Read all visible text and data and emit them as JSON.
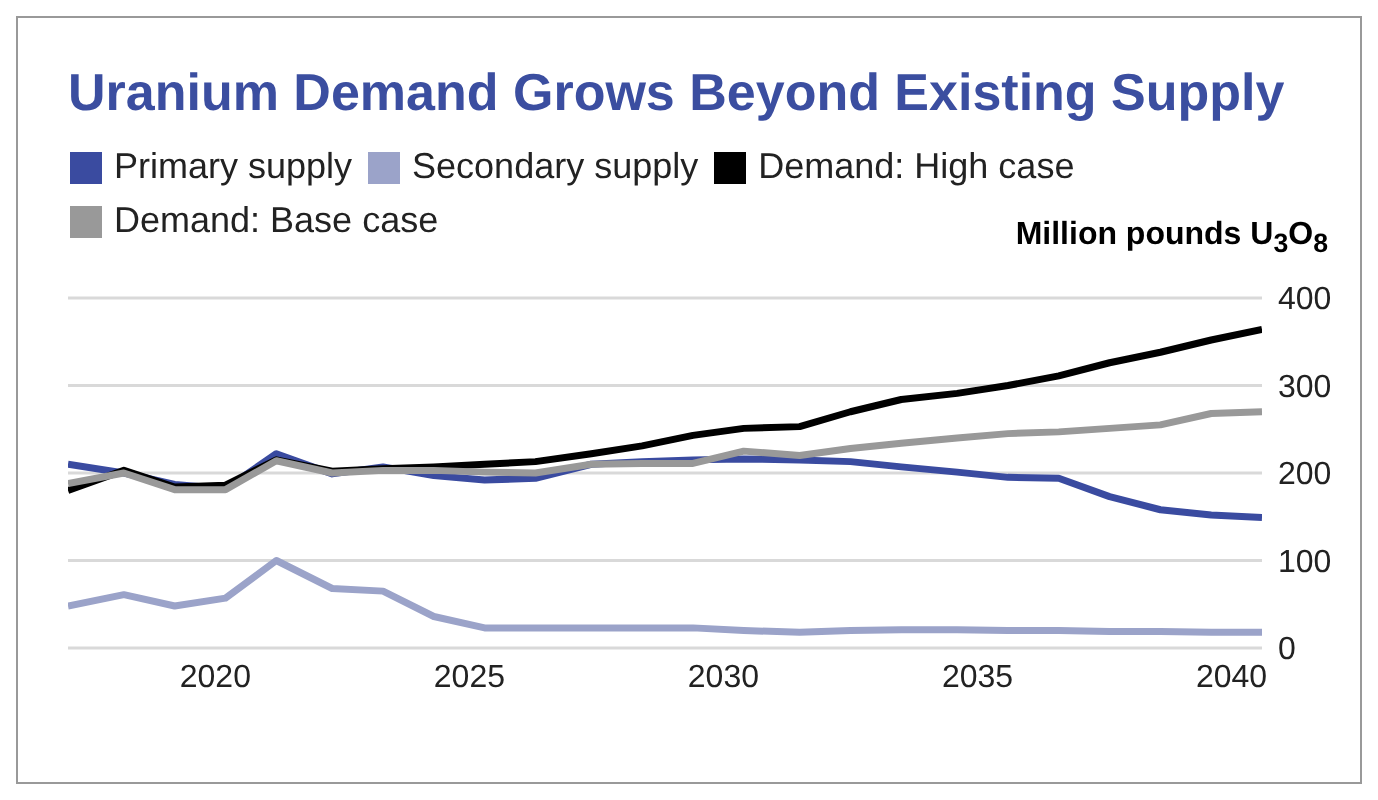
{
  "chart_data": {
    "type": "line",
    "title": "Uranium Demand Grows Beyond Existing Supply",
    "ylabel": "Million pounds U$_{3}$O$_{8}$",
    "x": [
      2017.1,
      2018.2,
      2019.2,
      2020.2,
      2021.2,
      2022.3,
      2023.3,
      2024.3,
      2025.3,
      2026.3,
      2027.4,
      2028.4,
      2029.4,
      2030.4,
      2031.5,
      2032.5,
      2033.5,
      2034.6,
      2035.6,
      2036.6,
      2037.6,
      2038.6,
      2039.6,
      2040.6
    ],
    "series": [
      {
        "name": "Primary supply",
        "color": "#3a4ba0",
        "values": [
          210,
          200,
          187,
          182,
          222,
          199,
          207,
          197,
          192,
          194,
          210,
          213,
          215,
          216,
          215,
          213,
          207,
          201,
          195,
          194,
          173,
          158,
          152,
          149
        ]
      },
      {
        "name": "Secondary supply",
        "color": "#9ba3c9",
        "values": [
          48,
          61,
          48,
          57,
          100,
          68,
          65,
          36,
          23,
          23,
          23,
          23,
          23,
          20,
          18,
          20,
          21,
          21,
          20,
          20,
          19,
          19,
          18,
          18
        ]
      },
      {
        "name": "Demand: High case",
        "color": "#000000",
        "values": [
          180,
          203,
          184,
          186,
          215,
          202,
          205,
          207,
          210,
          213,
          222,
          231,
          243,
          251,
          253,
          270,
          284,
          291,
          300,
          311,
          326,
          338,
          352,
          364
        ]
      },
      {
        "name": "Demand: Base case",
        "color": "#999999",
        "values": [
          188,
          200,
          181,
          181,
          214,
          200,
          203,
          203,
          201,
          200,
          210,
          211,
          211,
          225,
          220,
          228,
          234,
          240,
          245,
          247,
          251,
          255,
          268,
          270
        ]
      }
    ],
    "xlim": [
      2017.1,
      2040.6
    ],
    "xticks": [
      2020,
      2025,
      2030,
      2035,
      2040
    ],
    "ylim": [
      0,
      400
    ],
    "yticks": [
      0,
      100,
      200,
      300,
      400
    ],
    "grid": "y",
    "legend": "top left",
    "line_style": "solid"
  }
}
